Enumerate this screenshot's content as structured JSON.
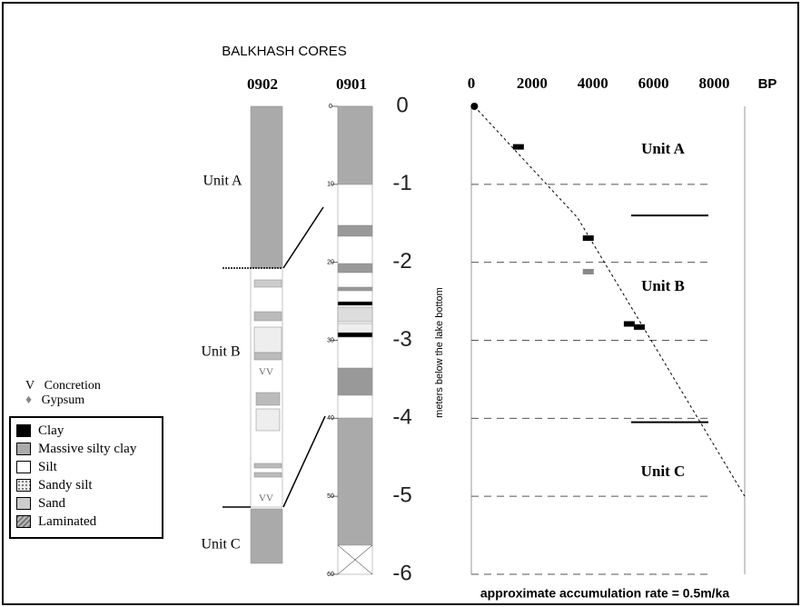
{
  "title": "BALKHASH CORES",
  "cores": [
    {
      "name": "0902",
      "units": [
        "Unit A",
        "Unit B",
        "Unit  C"
      ]
    },
    {
      "name": "0901",
      "scale": [
        "0",
        "10",
        "20",
        "30",
        "40",
        "50",
        "60"
      ]
    }
  ],
  "legend": {
    "symbols": [
      {
        "mark": "V",
        "label": "Concretion"
      },
      {
        "mark": "♦",
        "label": "Gypsum"
      }
    ],
    "items": [
      "Clay",
      "Massive silty clay",
      "Silt",
      "Sandy silt",
      "Sand",
      "Laminated"
    ]
  },
  "chart_data": {
    "type": "scatter",
    "x_label": "BP",
    "y_label": "meters below the lake bottom",
    "note": "approximate accumulation rate = 0.5m/ka",
    "xlim": [
      0,
      9000
    ],
    "xticks": [
      0,
      2000,
      4000,
      6000,
      8000
    ],
    "ylim": [
      -6,
      0
    ],
    "yticks": [
      0,
      -1,
      -2,
      -3,
      -4,
      -5,
      -6
    ],
    "grid": true,
    "series": [
      {
        "color": "#000000",
        "x": [
          100,
          1550,
          3850,
          5200,
          5530
        ],
        "values": [
          0,
          -0.52,
          -1.69,
          -2.79,
          -2.83
        ]
      },
      {
        "color": "#888888",
        "x": [
          3850
        ],
        "values": [
          -2.12
        ]
      }
    ],
    "line": {
      "x": [
        100,
        3500,
        9000
      ],
      "values": [
        0,
        -1.43,
        -5
      ]
    },
    "units": [
      "Unit A",
      "Unit B",
      "Unit C"
    ],
    "unit_boundaries": [
      -1.4,
      -4.05
    ]
  }
}
